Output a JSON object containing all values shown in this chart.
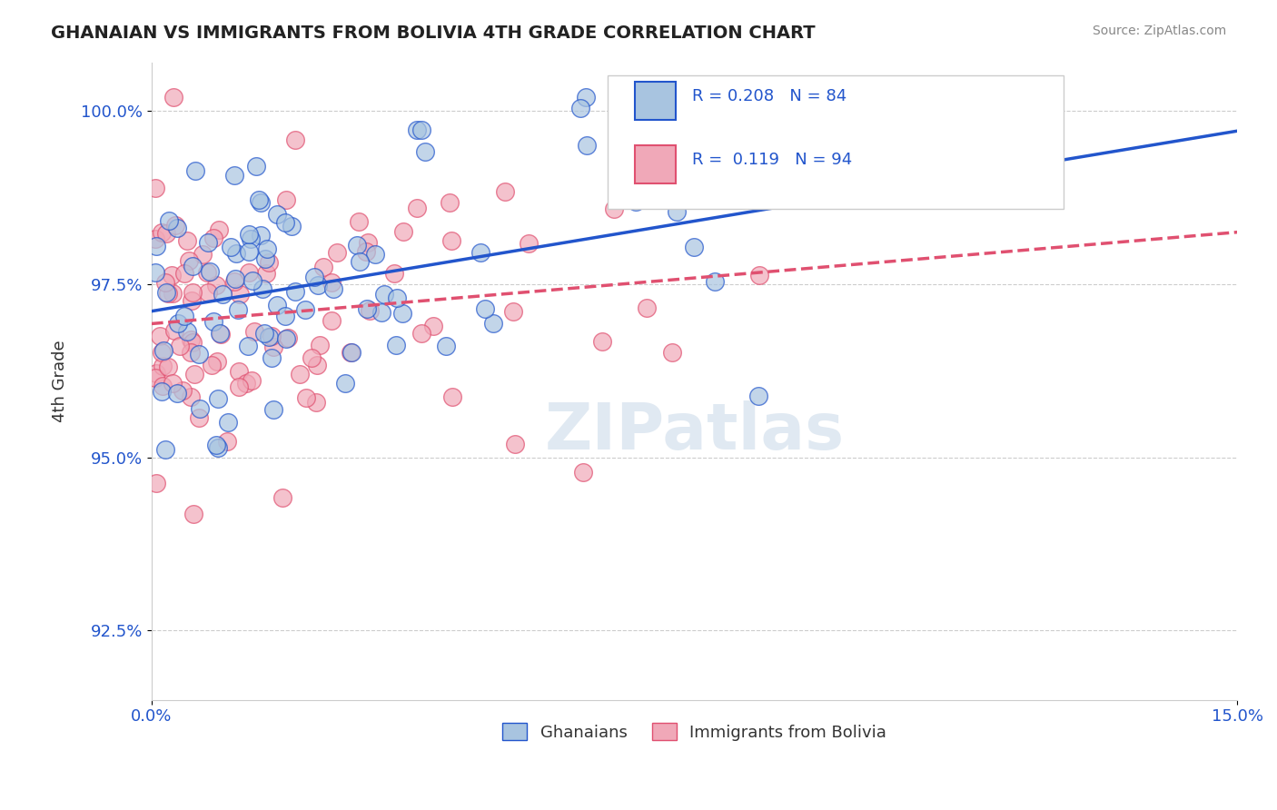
{
  "title": "GHANAIAN VS IMMIGRANTS FROM BOLIVIA 4TH GRADE CORRELATION CHART",
  "source": "Source: ZipAtlas.com",
  "xlabel": "",
  "ylabel": "4th Grade",
  "xlim": [
    0.0,
    15.0
  ],
  "ylim": [
    91.5,
    100.7
  ],
  "yticks": [
    92.5,
    95.0,
    97.5,
    100.0
  ],
  "ytick_labels": [
    "92.5%",
    "95.0%",
    "97.5%",
    "100.0%"
  ],
  "xticks": [
    0.0,
    15.0
  ],
  "xtick_labels": [
    "0.0%",
    "15.0%"
  ],
  "blue_R": 0.208,
  "blue_N": 84,
  "pink_R": 0.119,
  "pink_N": 94,
  "blue_color": "#a8c4e0",
  "pink_color": "#f0a8b8",
  "blue_line_color": "#2255cc",
  "pink_line_color": "#e05070",
  "watermark_text": "ZIPatlas",
  "legend_blue_label": "Ghanaians",
  "legend_pink_label": "Immigrants from Bolivia",
  "background_color": "#ffffff",
  "grid_color": "#cccccc"
}
